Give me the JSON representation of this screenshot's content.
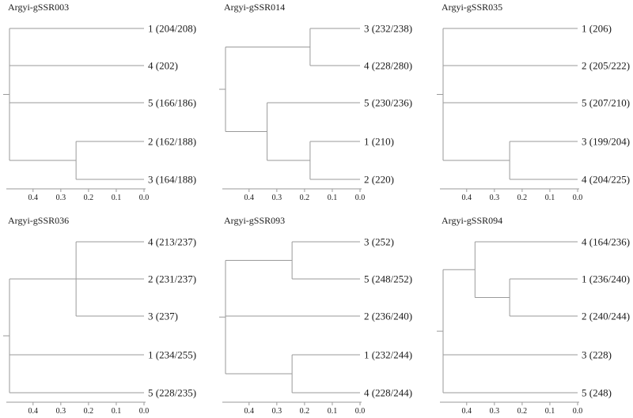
{
  "figure": {
    "axis": {
      "ticks": [
        "0.4",
        "0.3",
        "0.2",
        "0.1",
        "0.0"
      ]
    },
    "panels": [
      {
        "title": "Argyi-gSSR003",
        "leaves": [
          {
            "label": "1 (204/208)"
          },
          {
            "label": "4 (202)"
          },
          {
            "label": "5 (166/186)"
          },
          {
            "label": "2 (162/188)"
          },
          {
            "label": "3 (164/188)"
          }
        ],
        "nodes": [
          {
            "children": [
              "L3",
              "L4"
            ],
            "height": 0.245
          },
          {
            "children": [
              "L0",
              "L1",
              "L2",
              "N0"
            ],
            "height": 0.485
          }
        ]
      },
      {
        "title": "Argyi-gSSR014",
        "leaves": [
          {
            "label": "3 (232/238)"
          },
          {
            "label": "4 (228/280)"
          },
          {
            "label": "5 (230/236)"
          },
          {
            "label": "1 (210)"
          },
          {
            "label": "2 (220)"
          }
        ],
        "nodes": [
          {
            "children": [
              "L0",
              "L1"
            ],
            "height": 0.18
          },
          {
            "children": [
              "L3",
              "L4"
            ],
            "height": 0.18
          },
          {
            "children": [
              "L2",
              "N1"
            ],
            "height": 0.335
          },
          {
            "children": [
              "N0",
              "N2"
            ],
            "height": 0.485
          }
        ]
      },
      {
        "title": "Argyi-gSSR035",
        "leaves": [
          {
            "label": "1 (206)"
          },
          {
            "label": "2 (205/222)"
          },
          {
            "label": "5 (207/210)"
          },
          {
            "label": "3 (199/204)"
          },
          {
            "label": "4 (204/225)"
          }
        ],
        "nodes": [
          {
            "children": [
              "L3",
              "L4"
            ],
            "height": 0.245
          },
          {
            "children": [
              "L0",
              "L1",
              "L2",
              "N0"
            ],
            "height": 0.485
          }
        ]
      },
      {
        "title": "Argyi-gSSR036",
        "leaves": [
          {
            "label": "4 (213/237)"
          },
          {
            "label": "2 (231/237)"
          },
          {
            "label": "3 (237)"
          },
          {
            "label": "1 (234/255)"
          },
          {
            "label": "5 (228/235)"
          }
        ],
        "nodes": [
          {
            "children": [
              "L0",
              "L1",
              "L2"
            ],
            "height": 0.245
          },
          {
            "children": [
              "N0",
              "L3",
              "L4"
            ],
            "height": 0.485
          }
        ]
      },
      {
        "title": "Argyi-gSSR093",
        "leaves": [
          {
            "label": "3 (252)"
          },
          {
            "label": "5 (248/252)"
          },
          {
            "label": "2 (236/240)"
          },
          {
            "label": "1 (232/244)"
          },
          {
            "label": "4 (228/244)"
          }
        ],
        "nodes": [
          {
            "children": [
              "L0",
              "L1"
            ],
            "height": 0.245
          },
          {
            "children": [
              "L3",
              "L4"
            ],
            "height": 0.245
          },
          {
            "children": [
              "N0",
              "L2",
              "N1"
            ],
            "height": 0.485
          }
        ]
      },
      {
        "title": "Argyi-gSSR094",
        "leaves": [
          {
            "label": "4 (164/236)"
          },
          {
            "label": "1 (236/240)"
          },
          {
            "label": "2 (240/244)"
          },
          {
            "label": "3 (228)"
          },
          {
            "label": "5 (248)"
          }
        ],
        "nodes": [
          {
            "children": [
              "L1",
              "L2"
            ],
            "height": 0.245
          },
          {
            "children": [
              "L0",
              "N0"
            ],
            "height": 0.37
          },
          {
            "children": [
              "N1",
              "L3",
              "L4"
            ],
            "height": 0.485
          }
        ]
      }
    ]
  }
}
